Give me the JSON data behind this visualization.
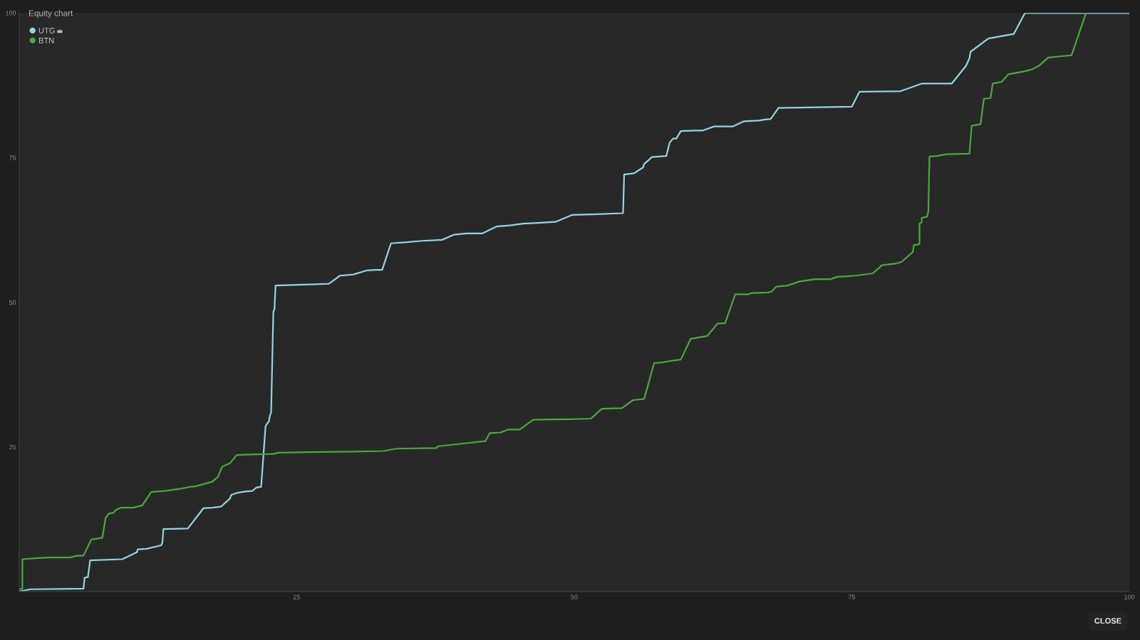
{
  "chart_data": {
    "type": "line",
    "title": "Equity chart",
    "legend": "top left",
    "line_style": "solid",
    "xlim": [
      0,
      100
    ],
    "ylim": [
      0,
      100
    ],
    "xticks": [
      25,
      50,
      75,
      100
    ],
    "yticks": [
      25,
      50,
      75,
      100
    ],
    "series": [
      {
        "name": "UTG",
        "color": "#94d4e6",
        "x": [
          0,
          1.0,
          5.8,
          5.9,
          6.2,
          6.4,
          9.3,
          10.6,
          10.7,
          11.5,
          12.8,
          12.9,
          13.0,
          15.2,
          16.6,
          17.4,
          18.2,
          19.0,
          19.1,
          19.7,
          20.4,
          21.0,
          21.4,
          21.8,
          22.2,
          22.4,
          22.5,
          22.6,
          22.7,
          22.9,
          23.0,
          23.1,
          27.9,
          28.9,
          30.1,
          31.3,
          32.1,
          32.7,
          33.5,
          35.0,
          36.1,
          38.1,
          39.2,
          40.3,
          41.7,
          43.0,
          44.2,
          45.4,
          48.3,
          49.8,
          51.6,
          54.4,
          54.5,
          55.4,
          56.2,
          56.3,
          57.0,
          58.3,
          58.6,
          58.9,
          59.2,
          59.6,
          60.9,
          61.6,
          62.6,
          64.3,
          65.3,
          66.6,
          67.2,
          67.7,
          68.4,
          71.2,
          75.0,
          75.7,
          79.4,
          81.3,
          84.0,
          85.3,
          85.6,
          85.7,
          87.3,
          89.6,
          90.6,
          100
        ],
        "values": [
          0,
          0.4,
          0.5,
          2.4,
          2.5,
          5.4,
          5.6,
          6.8,
          7.3,
          7.4,
          8.0,
          8.4,
          10.8,
          10.9,
          14.4,
          14.5,
          14.7,
          16.1,
          16.7,
          17.1,
          17.3,
          17.4,
          18.0,
          18.1,
          28.6,
          29.2,
          29.4,
          30.5,
          30.9,
          48.3,
          48.8,
          52.9,
          53.2,
          54.6,
          54.8,
          55.5,
          55.6,
          55.6,
          60.2,
          60.4,
          60.6,
          60.8,
          61.7,
          61.9,
          61.9,
          63.1,
          63.3,
          63.6,
          63.9,
          65.1,
          65.2,
          65.4,
          72.1,
          72.3,
          73.3,
          73.9,
          75.1,
          75.3,
          77.6,
          78.3,
          78.3,
          79.6,
          79.7,
          79.7,
          80.4,
          80.4,
          81.3,
          81.4,
          81.6,
          81.7,
          83.6,
          83.7,
          83.8,
          86.4,
          86.5,
          87.8,
          87.8,
          90.9,
          92.2,
          93.3,
          95.6,
          96.4,
          100,
          100
        ]
      },
      {
        "name": "BTN",
        "color": "#4aa83c",
        "x": [
          0,
          0.3,
          0.3,
          1.7,
          2.8,
          4.6,
          5.2,
          5.8,
          6.5,
          7.5,
          7.8,
          7.9,
          8.1,
          8.5,
          8.6,
          8.8,
          9.2,
          10.3,
          11.1,
          11.9,
          13.1,
          14.6,
          15.4,
          15.9,
          17.4,
          17.9,
          18.3,
          19.0,
          19.6,
          21.0,
          22.9,
          23.4,
          25.9,
          30.3,
          32.8,
          34.0,
          37.6,
          37.7,
          42.0,
          42.4,
          43.4,
          44.0,
          45.1,
          46.3,
          49.5,
          51.5,
          52.5,
          54.3,
          55.3,
          56.3,
          57.2,
          57.9,
          58.8,
          59.6,
          60.5,
          62.0,
          62.9,
          63.6,
          64.5,
          65.7,
          66.0,
          67.5,
          67.8,
          68.2,
          69.2,
          70.3,
          71.7,
          73.1,
          73.7,
          74.5,
          75.3,
          76.9,
          77.3,
          77.4,
          77.7,
          79.0,
          79.5,
          80.5,
          80.6,
          81.0,
          81.1,
          81.1,
          81.3,
          81.3,
          81.8,
          81.9,
          82.0,
          82.7,
          83.5,
          85.6,
          85.8,
          86.6,
          86.9,
          87.5,
          87.7,
          88.5,
          89.1,
          90.5,
          91.3,
          91.8,
          92.7,
          93.7,
          94.8,
          96.1
        ],
        "values": [
          0.4,
          0.5,
          5.6,
          5.8,
          5.9,
          5.9,
          6.2,
          6.2,
          9.0,
          9.3,
          12.8,
          13.0,
          13.5,
          13.6,
          13.9,
          14.2,
          14.5,
          14.5,
          14.9,
          17.2,
          17.4,
          17.8,
          18.1,
          18.2,
          19.0,
          19.8,
          21.6,
          22.2,
          23.6,
          23.7,
          23.8,
          24.0,
          24.1,
          24.2,
          24.3,
          24.7,
          24.8,
          25.1,
          26.0,
          27.4,
          27.5,
          28.0,
          28.0,
          29.7,
          29.8,
          29.9,
          31.6,
          31.7,
          33.1,
          33.3,
          39.5,
          39.6,
          39.9,
          40.1,
          43.7,
          44.2,
          46.3,
          46.4,
          51.4,
          51.4,
          51.6,
          51.7,
          51.9,
          52.7,
          52.9,
          53.6,
          54.0,
          54.0,
          54.4,
          54.5,
          54.6,
          55.0,
          55.7,
          55.8,
          56.4,
          56.7,
          57.0,
          58.7,
          59.9,
          60.0,
          60.2,
          63.6,
          63.8,
          64.6,
          64.8,
          65.8,
          75.2,
          75.3,
          75.6,
          75.7,
          80.5,
          80.8,
          85.2,
          85.3,
          87.8,
          88.1,
          89.4,
          89.9,
          90.3,
          90.8,
          92.3,
          92.5,
          92.7,
          100
        ]
      }
    ],
    "annotations": [
      "CLOSE"
    ]
  }
}
